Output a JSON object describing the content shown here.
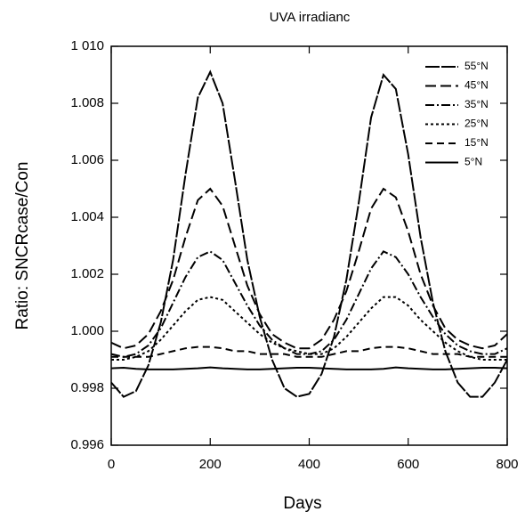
{
  "chart_data": {
    "type": "line",
    "title": "UVA irradianc",
    "xlabel": "Days",
    "ylabel": "Ratio: SNCRcase/Con",
    "x": [
      0,
      25,
      50,
      75,
      100,
      125,
      150,
      175,
      200,
      225,
      250,
      275,
      300,
      325,
      350,
      375,
      400,
      425,
      450,
      475,
      500,
      525,
      550,
      575,
      600,
      625,
      650,
      675,
      700,
      725,
      750,
      775,
      800
    ],
    "series": [
      {
        "name": "55°N",
        "color": "#000000",
        "dash": "16 2",
        "values": [
          0.9982,
          0.9977,
          0.9979,
          0.9988,
          1.0003,
          1.0025,
          1.0055,
          1.0082,
          1.0091,
          1.008,
          1.0053,
          1.0025,
          1.0005,
          0.999,
          0.998,
          0.9977,
          0.9978,
          0.9985,
          0.9998,
          1.0018,
          1.0045,
          1.0075,
          1.009,
          1.0085,
          1.0062,
          1.0033,
          1.001,
          0.9993,
          0.9982,
          0.9977,
          0.9977,
          0.9982,
          0.999
        ]
      },
      {
        "name": "45°N",
        "color": "#000000",
        "dash": "12 5",
        "values": [
          0.9996,
          0.9994,
          0.9995,
          0.9999,
          1.0007,
          1.0018,
          1.0033,
          1.0046,
          1.005,
          1.0044,
          1.003,
          1.0016,
          1.0006,
          0.9999,
          0.9996,
          0.9994,
          0.9994,
          0.9997,
          1.0004,
          1.0014,
          1.0028,
          1.0043,
          1.005,
          1.0047,
          1.0035,
          1.002,
          1.0009,
          1.0001,
          0.9997,
          0.9995,
          0.9994,
          0.9995,
          0.9999
        ]
      },
      {
        "name": "35°N",
        "color": "#000000",
        "dash": "10 3 2 3",
        "values": [
          0.9992,
          0.9991,
          0.9992,
          0.9995,
          1.0001,
          1.001,
          1.0019,
          1.0026,
          1.0028,
          1.0025,
          1.0017,
          1.0009,
          1.0002,
          0.9997,
          0.9994,
          0.9992,
          0.9992,
          0.9993,
          0.9997,
          1.0004,
          1.0013,
          1.0022,
          1.0028,
          1.0026,
          1.002,
          1.0012,
          1.0005,
          0.9999,
          0.9995,
          0.9993,
          0.9992,
          0.9992,
          0.9994
        ]
      },
      {
        "name": "25°N",
        "color": "#000000",
        "dash": "3 3",
        "values": [
          0.999,
          0.999,
          0.9991,
          0.9993,
          0.9997,
          1.0002,
          1.0007,
          1.0011,
          1.0012,
          1.0011,
          1.0007,
          1.0003,
          0.9999,
          0.9996,
          0.9994,
          0.9993,
          0.9992,
          0.9992,
          0.9994,
          0.9998,
          1.0003,
          1.0008,
          1.0012,
          1.0012,
          1.0009,
          1.0004,
          1.0,
          0.9996,
          0.9993,
          0.9991,
          0.999,
          0.999,
          0.999
        ]
      },
      {
        "name": "15°N",
        "color": "#000000",
        "dash": "8 5",
        "values": [
          0.9991,
          0.9991,
          0.9991,
          0.9991,
          0.9992,
          0.9993,
          0.9994,
          0.99945,
          0.99945,
          0.9994,
          0.9993,
          0.9993,
          0.9992,
          0.9992,
          0.9992,
          0.9991,
          0.9991,
          0.9991,
          0.9992,
          0.9993,
          0.9993,
          0.9994,
          0.99945,
          0.99945,
          0.9994,
          0.9993,
          0.9992,
          0.9992,
          0.9992,
          0.9991,
          0.9991,
          0.9991,
          0.9991
        ]
      },
      {
        "name": "5°N",
        "color": "#000000",
        "dash": "none",
        "values": [
          0.9987,
          0.99872,
          0.99868,
          0.99866,
          0.99866,
          0.99866,
          0.99868,
          0.9987,
          0.99873,
          0.9987,
          0.99868,
          0.99866,
          0.99866,
          0.99868,
          0.9987,
          0.99872,
          0.99872,
          0.9987,
          0.99868,
          0.99866,
          0.99866,
          0.99866,
          0.99868,
          0.99873,
          0.9987,
          0.99868,
          0.99866,
          0.99866,
          0.99868,
          0.9987,
          0.99872,
          0.99872,
          0.9987
        ]
      }
    ],
    "xlim": [
      0,
      800
    ],
    "xticks": [
      0,
      200,
      400,
      600,
      800
    ],
    "ylim": [
      0.996,
      1.01
    ],
    "yticks": [
      0.996,
      0.998,
      {
        "value": 1.0,
        "label": "1.000"
      },
      1.002,
      1.004,
      1.006,
      1.008,
      {
        "value": 1.01,
        "label": "1 010"
      }
    ],
    "legend": "upper right"
  }
}
